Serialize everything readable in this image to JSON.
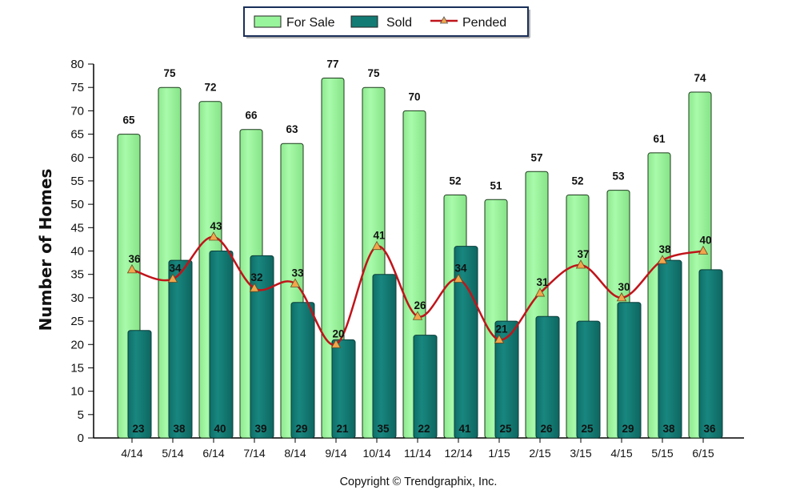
{
  "chart_data": {
    "type": "bar",
    "ylabel": "Number of Homes",
    "xlabel": "",
    "ylim": [
      0,
      80
    ],
    "ytick_step": 5,
    "grid": false,
    "legend_position": "top-center",
    "categories": [
      "4/14",
      "5/14",
      "6/14",
      "7/14",
      "8/14",
      "9/14",
      "10/14",
      "11/14",
      "12/14",
      "1/15",
      "2/15",
      "3/15",
      "4/15",
      "5/15",
      "6/15"
    ],
    "series": [
      {
        "name": "For Sale",
        "type": "bar",
        "color": "#99f59b",
        "values": [
          65,
          75,
          72,
          66,
          63,
          77,
          75,
          70,
          52,
          51,
          57,
          52,
          53,
          61,
          74
        ]
      },
      {
        "name": "Sold",
        "type": "bar",
        "color": "#127b74",
        "values": [
          23,
          38,
          40,
          39,
          29,
          21,
          35,
          22,
          41,
          25,
          26,
          25,
          29,
          38,
          36
        ]
      },
      {
        "name": "Pended",
        "type": "line",
        "color": "#c0141a",
        "marker_color": "#f1a64c",
        "values": [
          36,
          34,
          43,
          32,
          33,
          20,
          41,
          26,
          34,
          21,
          31,
          37,
          30,
          38,
          40
        ]
      }
    ]
  },
  "footer": {
    "copyright": "Copyright © Trendgraphix, Inc."
  }
}
